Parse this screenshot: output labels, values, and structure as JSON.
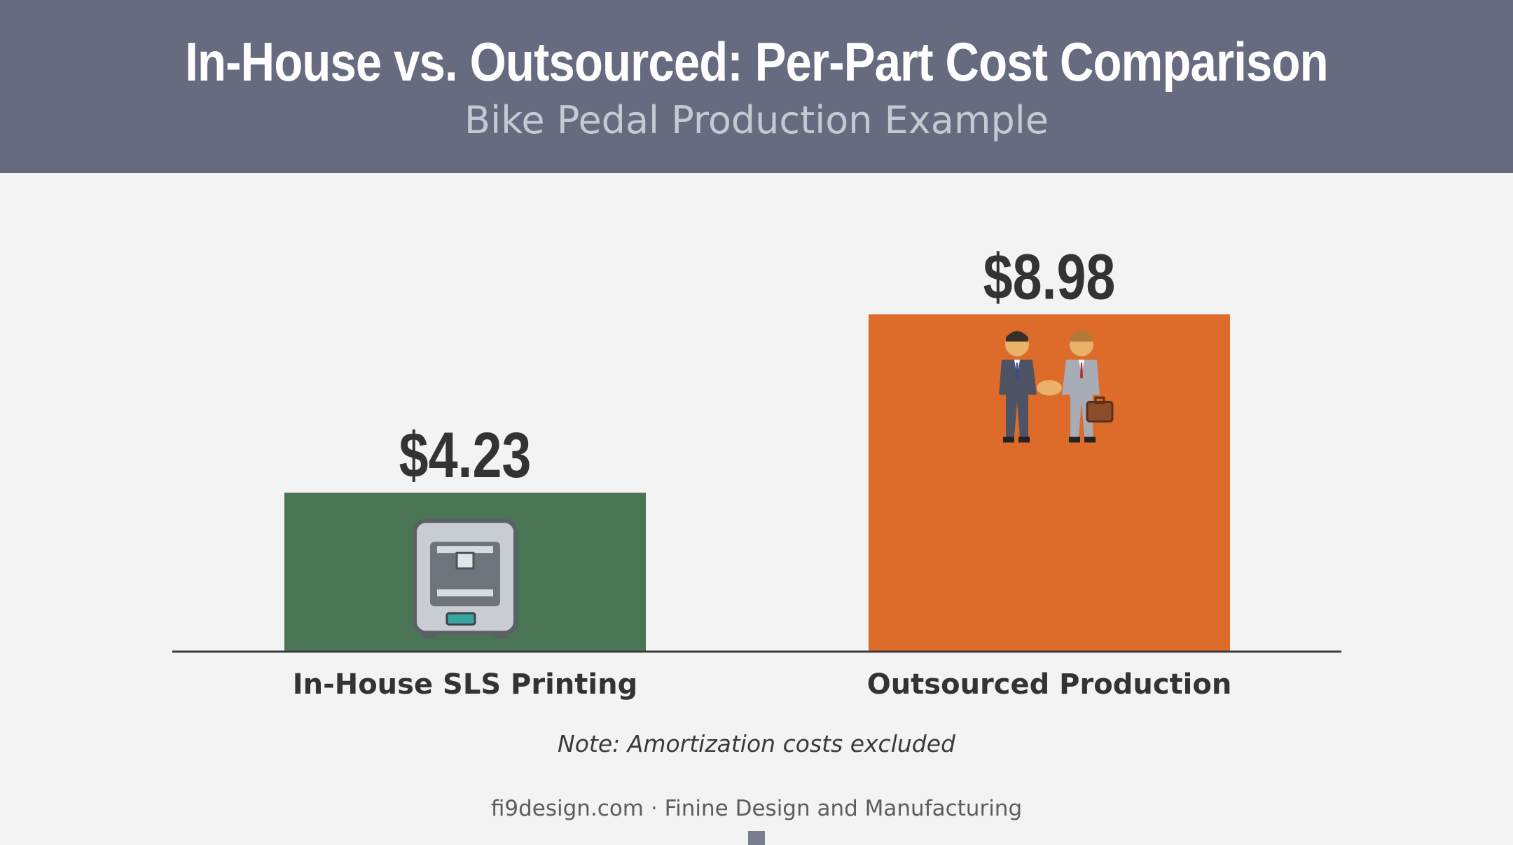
{
  "header": {
    "title": "In-House vs. Outsourced: Per-Part Cost Comparison",
    "subtitle": "Bike Pedal Production Example"
  },
  "chart_data": {
    "type": "bar",
    "title": "In-House vs. Outsourced: Per-Part Cost Comparison",
    "subtitle": "Bike Pedal Production Example",
    "categories": [
      "In-House SLS Printing",
      "Outsourced Production"
    ],
    "values": [
      4.23,
      8.98
    ],
    "value_labels": [
      "$4.23",
      "$8.98"
    ],
    "colors": [
      "#4a7554",
      "#dd6b2a"
    ],
    "icons": [
      "3d-printer-icon",
      "handshake-icon"
    ],
    "ylim": [
      0,
      10.5
    ],
    "grid": false,
    "legend": "none"
  },
  "note": "Note: Amortization costs excluded",
  "footer": "fi9design.com · Finine Design and Manufacturing"
}
